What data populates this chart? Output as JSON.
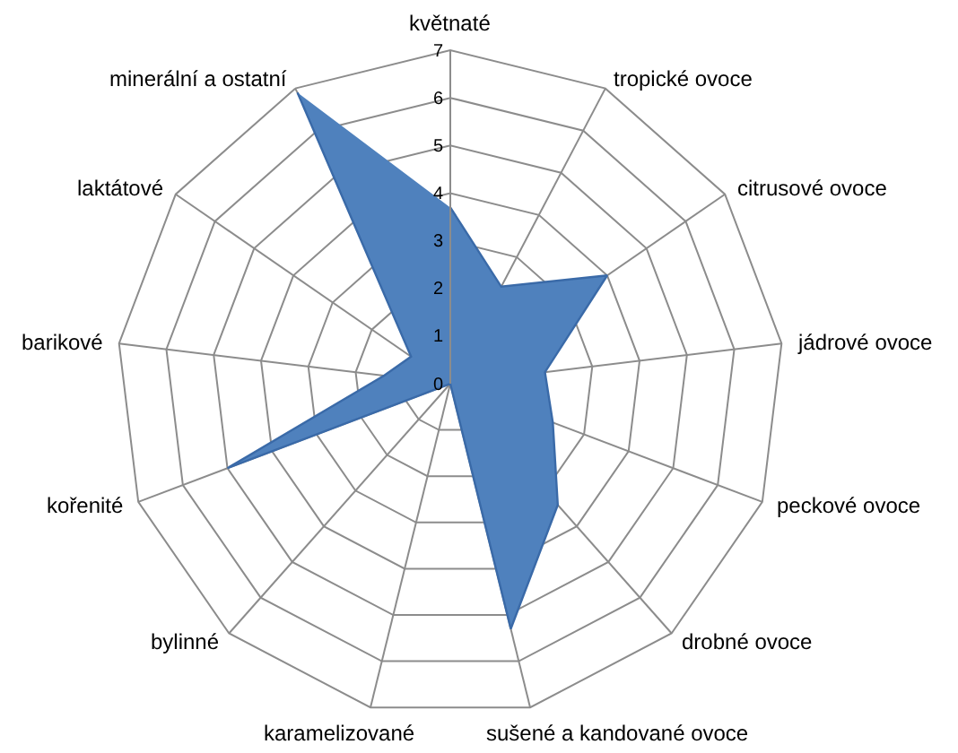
{
  "chart_data": {
    "type": "radar",
    "categories": [
      "květnaté",
      "tropické ovoce",
      "citrusové ovoce",
      "jádrové ovoce",
      "peckové ovoce",
      "drobné ovoce",
      "sušené a kandované ovoce",
      "karamelizované",
      "bylinné",
      "kořenité",
      "barikové",
      "laktátové",
      "minerální a ostatní"
    ],
    "series": [
      {
        "color": "#4f81bd",
        "values": [
          3.7,
          2.3,
          4,
          2,
          2.3,
          3.4,
          5.3,
          0,
          0,
          5,
          1.4,
          1,
          6.9
        ]
      }
    ],
    "ylim": [
      0,
      7
    ],
    "yticks": [
      0,
      1,
      2,
      3,
      4,
      5,
      6,
      7
    ],
    "grid": true
  }
}
